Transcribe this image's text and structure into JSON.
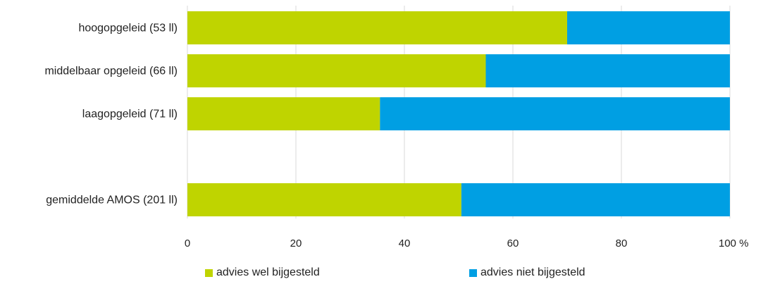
{
  "chart_data": {
    "type": "bar",
    "stacked": true,
    "orientation": "horizontal",
    "categories": [
      "hoogopgeleid (53 ll)",
      "middelbaar opgeleid (66 ll)",
      "laagopgeleid (71 ll)",
      "",
      "gemiddelde AMOS (201 ll)"
    ],
    "series": [
      {
        "name": "advies wel bijgesteld",
        "color": "#bfd400",
        "values": [
          70,
          55,
          35.5,
          null,
          50.5
        ]
      },
      {
        "name": "advies niet bijgesteld",
        "color": "#009fe3",
        "values": [
          30,
          45,
          64.5,
          null,
          49.5
        ]
      }
    ],
    "xlim": [
      0,
      100
    ],
    "xticks": [
      "0",
      "20",
      "40",
      "60",
      "80",
      "100 %"
    ],
    "grid": true,
    "legend_position": "bottom"
  }
}
